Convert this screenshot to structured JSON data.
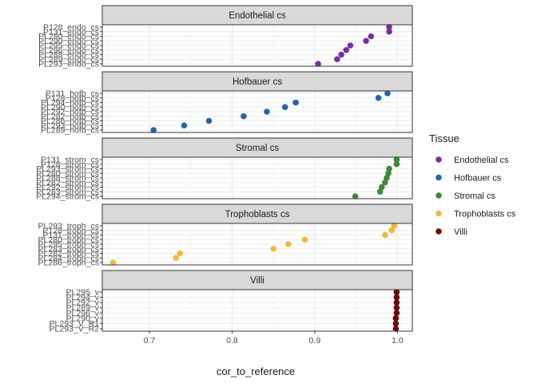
{
  "chart_data": {
    "type": "scatter",
    "xlabel": "cor_to_reference",
    "ylabel": "",
    "xlim": [
      0.643,
      1.018
    ],
    "xticks": [
      {
        "value": 0.7,
        "label": "0.7"
      },
      {
        "value": 0.8,
        "label": "0.8"
      },
      {
        "value": 0.9,
        "label": "0.9"
      },
      {
        "value": 1.0,
        "label": "1.0"
      }
    ],
    "grid": true,
    "legend": {
      "title": "Tissue",
      "position": "right",
      "entries": [
        {
          "label": "Endothelial cs",
          "color": "#7B2F9E"
        },
        {
          "label": "Hofbauer cs",
          "color": "#2166AC"
        },
        {
          "label": "Stromal cs",
          "color": "#3A8A3A"
        },
        {
          "label": "Trophoblasts cs",
          "color": "#F0B93B"
        },
        {
          "label": "Villi",
          "color": "#6B0A0A"
        }
      ]
    },
    "panels": [
      {
        "strip": "Endothelial cs",
        "color": "#7B2F9E",
        "points": [
          {
            "label": "P128_endo_cs",
            "x": 0.99
          },
          {
            "label": "P131_endo_cs",
            "x": 0.99
          },
          {
            "label": "PL280_endo_cs",
            "x": 0.968
          },
          {
            "label": "PL290_endo_cs",
            "x": 0.962
          },
          {
            "label": "PL295_endo_cs",
            "x": 0.943
          },
          {
            "label": "PL296_endo_cs",
            "x": 0.938
          },
          {
            "label": "PL288_endo_cs",
            "x": 0.932
          },
          {
            "label": "PL289_endo_cs",
            "x": 0.927
          },
          {
            "label": "PL293_endo_cs",
            "x": 0.904
          }
        ]
      },
      {
        "strip": "Hofbauer cs",
        "color": "#2166AC",
        "points": [
          {
            "label": "P131_hofb_cs",
            "x": 0.988
          },
          {
            "label": "P128_hofb_cs",
            "x": 0.977
          },
          {
            "label": "PL294_hofb_cs",
            "x": 0.877
          },
          {
            "label": "PL290_hofb_cs",
            "x": 0.864
          },
          {
            "label": "PL292_hofb_cs",
            "x": 0.842
          },
          {
            "label": "PL282_hofb_cs",
            "x": 0.814
          },
          {
            "label": "PL286_hofb_cs",
            "x": 0.772
          },
          {
            "label": "PL293_hofb_cs",
            "x": 0.742
          },
          {
            "label": "PL289_hofb_cs",
            "x": 0.705
          }
        ]
      },
      {
        "strip": "Stromal cs",
        "color": "#3A8A3A",
        "points": [
          {
            "label": "P131_strom_cs",
            "x": 0.999
          },
          {
            "label": "P128_strom_cs",
            "x": 0.999
          },
          {
            "label": "PL293_strom_cs",
            "x": 0.99
          },
          {
            "label": "PL280_strom_cs",
            "x": 0.989
          },
          {
            "label": "PL288_strom_cs",
            "x": 0.987
          },
          {
            "label": "PL282_strom_cs",
            "x": 0.985
          },
          {
            "label": "PL292_strom_cs",
            "x": 0.981
          },
          {
            "label": "PL283_strom_cs",
            "x": 0.979
          },
          {
            "label": "PL294_strom_cs",
            "x": 0.949
          }
        ]
      },
      {
        "strip": "Trophoblasts cs",
        "color": "#F0B93B",
        "points": [
          {
            "label": "PL293_troph_cs",
            "x": 0.996
          },
          {
            "label": "P128_troph_cs",
            "x": 0.993
          },
          {
            "label": "P131_troph_cs",
            "x": 0.985
          },
          {
            "label": "PL280_troph_cs",
            "x": 0.888
          },
          {
            "label": "PL295_troph_cs",
            "x": 0.868
          },
          {
            "label": "PL283_troph_cs",
            "x": 0.85
          },
          {
            "label": "PL282_troph_cs",
            "x": 0.737
          },
          {
            "label": "PL284_troph_cs",
            "x": 0.732
          },
          {
            "label": "PL286_troph_cs",
            "x": 0.656
          }
        ]
      },
      {
        "strip": "Villi",
        "color": "#6B0A0A",
        "points": [
          {
            "label": "PL295_v",
            "x": 0.999
          },
          {
            "label": "PL294_v",
            "x": 0.999
          },
          {
            "label": "PL292_v",
            "x": 0.999
          },
          {
            "label": "PL289_v",
            "x": 0.999
          },
          {
            "label": "PL296_v",
            "x": 0.999
          },
          {
            "label": "PL290_v",
            "x": 0.998
          },
          {
            "label": "PL293_V_R1",
            "x": 0.998
          },
          {
            "label": "PL293_V_R2",
            "x": 0.998
          }
        ]
      }
    ]
  }
}
